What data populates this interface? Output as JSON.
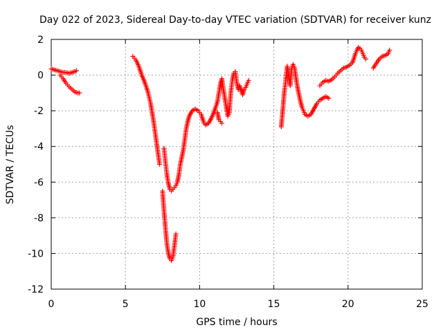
{
  "chart_data": {
    "type": "scatter",
    "title": "Day 022 of 2023, Sidereal Day-to-day VTEC variation (SDTVAR) for receiver kunz",
    "xlabel": "GPS time / hours",
    "ylabel": "SDTVAR / TECUs",
    "xlim": [
      0,
      25
    ],
    "ylim": [
      -12,
      2
    ],
    "xticks": [
      0,
      5,
      10,
      15,
      20,
      25
    ],
    "yticks": [
      -12,
      -10,
      -8,
      -6,
      -4,
      -2,
      0,
      2
    ],
    "xtick_labels": [
      "0",
      "5",
      "10",
      "15",
      "20",
      "25"
    ],
    "ytick_labels": [
      "-12",
      "-10",
      "-8",
      "-6",
      "-4",
      "-2",
      "0",
      "2"
    ],
    "grid": true,
    "marker": "plus",
    "color": "#ff0000",
    "series": [
      {
        "name": "SDTVAR",
        "points": [
          [
            0.0,
            0.35
          ],
          [
            0.2,
            0.3
          ],
          [
            0.4,
            0.25
          ],
          [
            0.6,
            0.2
          ],
          [
            0.8,
            0.15
          ],
          [
            1.0,
            0.15
          ],
          [
            1.2,
            0.1
          ],
          [
            1.4,
            0.15
          ],
          [
            1.6,
            0.2
          ],
          [
            1.7,
            0.25
          ],
          [
            0.6,
            0.0
          ],
          [
            0.8,
            -0.2
          ],
          [
            1.0,
            -0.45
          ],
          [
            1.2,
            -0.65
          ],
          [
            1.4,
            -0.8
          ],
          [
            1.6,
            -0.95
          ],
          [
            1.8,
            -1.0
          ],
          [
            1.9,
            -1.0
          ],
          [
            5.5,
            1.05
          ],
          [
            5.7,
            0.85
          ],
          [
            5.9,
            0.5
          ],
          [
            6.1,
            0.0
          ],
          [
            6.3,
            -0.4
          ],
          [
            6.5,
            -0.9
          ],
          [
            6.7,
            -1.6
          ],
          [
            6.9,
            -2.6
          ],
          [
            7.1,
            -3.8
          ],
          [
            7.3,
            -5.0
          ],
          [
            7.5,
            -6.5
          ],
          [
            7.6,
            -7.6
          ],
          [
            7.7,
            -8.6
          ],
          [
            7.8,
            -9.5
          ],
          [
            7.9,
            -10.0
          ],
          [
            8.0,
            -10.3
          ],
          [
            8.1,
            -10.4
          ],
          [
            8.2,
            -10.2
          ],
          [
            8.3,
            -9.6
          ],
          [
            8.4,
            -8.9
          ],
          [
            7.6,
            -4.1
          ],
          [
            7.7,
            -4.9
          ],
          [
            7.8,
            -5.6
          ],
          [
            7.9,
            -6.1
          ],
          [
            8.0,
            -6.4
          ],
          [
            8.1,
            -6.5
          ],
          [
            8.2,
            -6.4
          ],
          [
            8.3,
            -6.3
          ],
          [
            8.4,
            -6.2
          ],
          [
            8.5,
            -6.0
          ],
          [
            8.6,
            -5.6
          ],
          [
            8.7,
            -5.0
          ],
          [
            8.8,
            -4.6
          ],
          [
            8.9,
            -4.2
          ],
          [
            9.0,
            -3.6
          ],
          [
            9.1,
            -3.0
          ],
          [
            9.2,
            -2.6
          ],
          [
            9.3,
            -2.3
          ],
          [
            9.5,
            -2.0
          ],
          [
            9.7,
            -1.9
          ],
          [
            9.9,
            -2.0
          ],
          [
            10.1,
            -2.2
          ],
          [
            10.3,
            -2.7
          ],
          [
            10.4,
            -2.8
          ],
          [
            10.6,
            -2.7
          ],
          [
            10.8,
            -2.4
          ],
          [
            11.0,
            -2.0
          ],
          [
            11.2,
            -1.5
          ],
          [
            11.3,
            -1.0
          ],
          [
            11.4,
            -0.5
          ],
          [
            11.5,
            -0.2
          ],
          [
            11.6,
            -0.8
          ],
          [
            11.7,
            -1.3
          ],
          [
            11.8,
            -1.8
          ],
          [
            11.9,
            -2.3
          ],
          [
            12.0,
            -2.1
          ],
          [
            12.1,
            -1.0
          ],
          [
            12.2,
            -0.3
          ],
          [
            12.3,
            0.1
          ],
          [
            12.4,
            0.2
          ],
          [
            12.5,
            -0.4
          ],
          [
            12.6,
            -0.8
          ],
          [
            12.7,
            -0.6
          ],
          [
            12.8,
            -0.9
          ],
          [
            12.9,
            -1.1
          ],
          [
            13.0,
            -0.8
          ],
          [
            13.1,
            -0.7
          ],
          [
            13.2,
            -0.5
          ],
          [
            13.3,
            -0.3
          ],
          [
            11.2,
            -2.1
          ],
          [
            11.3,
            -2.5
          ],
          [
            11.4,
            -2.6
          ],
          [
            11.5,
            -2.7
          ],
          [
            15.5,
            -2.9
          ],
          [
            15.6,
            -2.0
          ],
          [
            15.7,
            -1.0
          ],
          [
            15.8,
            -0.3
          ],
          [
            15.9,
            0.5
          ],
          [
            16.0,
            0.0
          ],
          [
            16.1,
            -0.6
          ],
          [
            16.2,
            0.4
          ],
          [
            16.3,
            0.6
          ],
          [
            16.4,
            0.4
          ],
          [
            16.5,
            -0.2
          ],
          [
            16.6,
            -0.7
          ],
          [
            16.7,
            -1.1
          ],
          [
            16.8,
            -1.5
          ],
          [
            16.9,
            -1.8
          ],
          [
            17.0,
            -2.0
          ],
          [
            17.1,
            -2.2
          ],
          [
            17.3,
            -2.3
          ],
          [
            17.5,
            -2.2
          ],
          [
            17.7,
            -1.9
          ],
          [
            17.9,
            -1.6
          ],
          [
            18.1,
            -1.4
          ],
          [
            18.3,
            -1.3
          ],
          [
            18.5,
            -1.2
          ],
          [
            18.7,
            -1.3
          ],
          [
            18.1,
            -0.6
          ],
          [
            18.3,
            -0.4
          ],
          [
            18.5,
            -0.3
          ],
          [
            18.7,
            -0.35
          ],
          [
            18.9,
            -0.25
          ],
          [
            19.1,
            -0.1
          ],
          [
            19.3,
            0.1
          ],
          [
            19.5,
            0.25
          ],
          [
            19.7,
            0.4
          ],
          [
            19.9,
            0.45
          ],
          [
            20.1,
            0.55
          ],
          [
            20.3,
            0.7
          ],
          [
            20.4,
            0.95
          ],
          [
            20.5,
            1.2
          ],
          [
            20.6,
            1.4
          ],
          [
            20.7,
            1.55
          ],
          [
            20.8,
            1.5
          ],
          [
            20.9,
            1.4
          ],
          [
            21.0,
            1.2
          ],
          [
            21.1,
            1.0
          ],
          [
            21.2,
            0.9
          ],
          [
            21.7,
            0.4
          ],
          [
            21.9,
            0.65
          ],
          [
            22.1,
            0.9
          ],
          [
            22.3,
            1.05
          ],
          [
            22.5,
            1.1
          ],
          [
            22.7,
            1.2
          ],
          [
            22.8,
            1.4
          ]
        ]
      }
    ]
  }
}
